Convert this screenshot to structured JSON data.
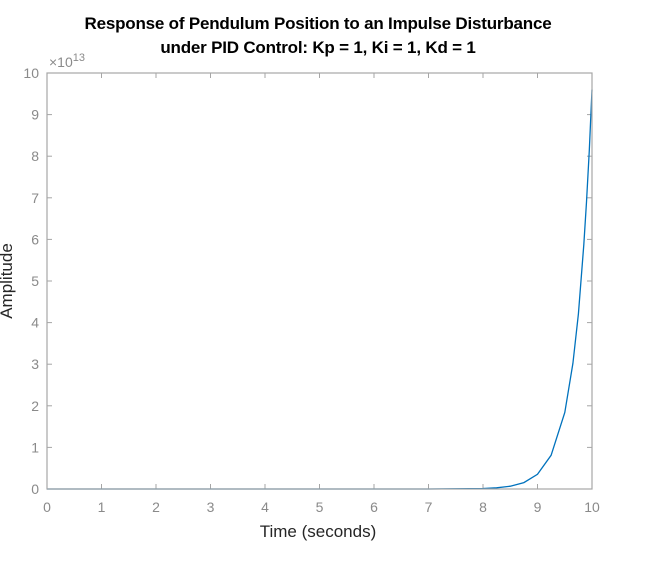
{
  "chart_data": {
    "type": "line",
    "title": "Response of Pendulum Position to an Impulse Disturbance",
    "subtitle": "under PID Control: Kp = 1, Ki = 1, Kd = 1",
    "xlabel": "Time (seconds)",
    "ylabel": "Amplitude",
    "y_exponent": "×10^13",
    "xlim": [
      0,
      10
    ],
    "ylim": [
      0,
      10
    ],
    "y_scale": 10000000000000.0,
    "grid": false,
    "legend": null,
    "x_ticks": [
      "0",
      "1",
      "2",
      "3",
      "4",
      "5",
      "6",
      "7",
      "8",
      "9",
      "10"
    ],
    "y_ticks": [
      "0",
      "1",
      "2",
      "3",
      "4",
      "5",
      "6",
      "7",
      "8",
      "9",
      "10"
    ],
    "series": [
      {
        "name": "Amplitude",
        "color": "#0072BD",
        "x": [
          0,
          1,
          2,
          3,
          4,
          5,
          6,
          7,
          8.0,
          8.25,
          8.5,
          8.75,
          9.0,
          9.25,
          9.5,
          9.65,
          9.75,
          9.85,
          9.9,
          9.95,
          10.0
        ],
        "y": [
          0,
          0,
          0,
          0,
          0,
          0,
          0,
          0,
          0.013,
          0.03,
          0.068,
          0.155,
          0.354,
          0.81,
          1.84,
          3.02,
          4.21,
          5.87,
          6.9,
          8.14,
          9.6
        ]
      }
    ]
  },
  "title": {
    "line1": "Response of Pendulum Position to an Impulse Disturbance",
    "line2": "under PID Control: Kp = 1, Ki = 1, Kd = 1"
  },
  "axes": {
    "xlabel": "Time (seconds)",
    "ylabel": "Amplitude",
    "exp_base": "×10",
    "exp_power": "13"
  }
}
